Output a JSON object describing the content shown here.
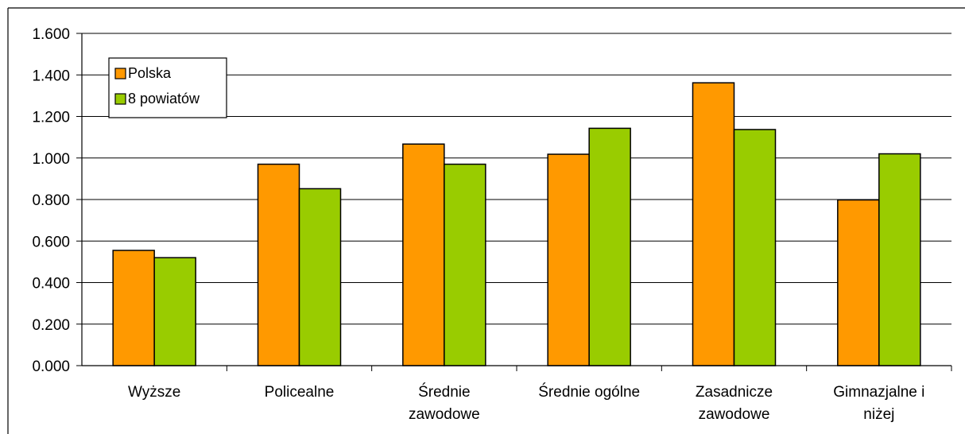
{
  "chart_data": {
    "type": "bar",
    "categories": [
      [
        "Wyższe"
      ],
      [
        "Policealne"
      ],
      [
        "Średnie",
        "zawodowe"
      ],
      [
        "Średnie ogólne"
      ],
      [
        "Zasadnicze",
        "zawodowe"
      ],
      [
        "Gimnazjalne i",
        "niżej"
      ]
    ],
    "series": [
      {
        "name": "Polska",
        "color": "#ff9900",
        "values": [
          0.555,
          0.97,
          1.067,
          1.018,
          1.362,
          0.798
        ]
      },
      {
        "name": "8 powiatów",
        "color": "#99cc00",
        "values": [
          0.52,
          0.852,
          0.97,
          1.143,
          1.137,
          1.02
        ]
      }
    ],
    "y_ticks": [
      "0.000",
      "0.200",
      "0.400",
      "0.600",
      "0.800",
      "1.000",
      "1.200",
      "1.400",
      "1.600"
    ],
    "ylim": [
      0,
      1.6
    ],
    "grid": true,
    "legend_position": "top-left"
  }
}
